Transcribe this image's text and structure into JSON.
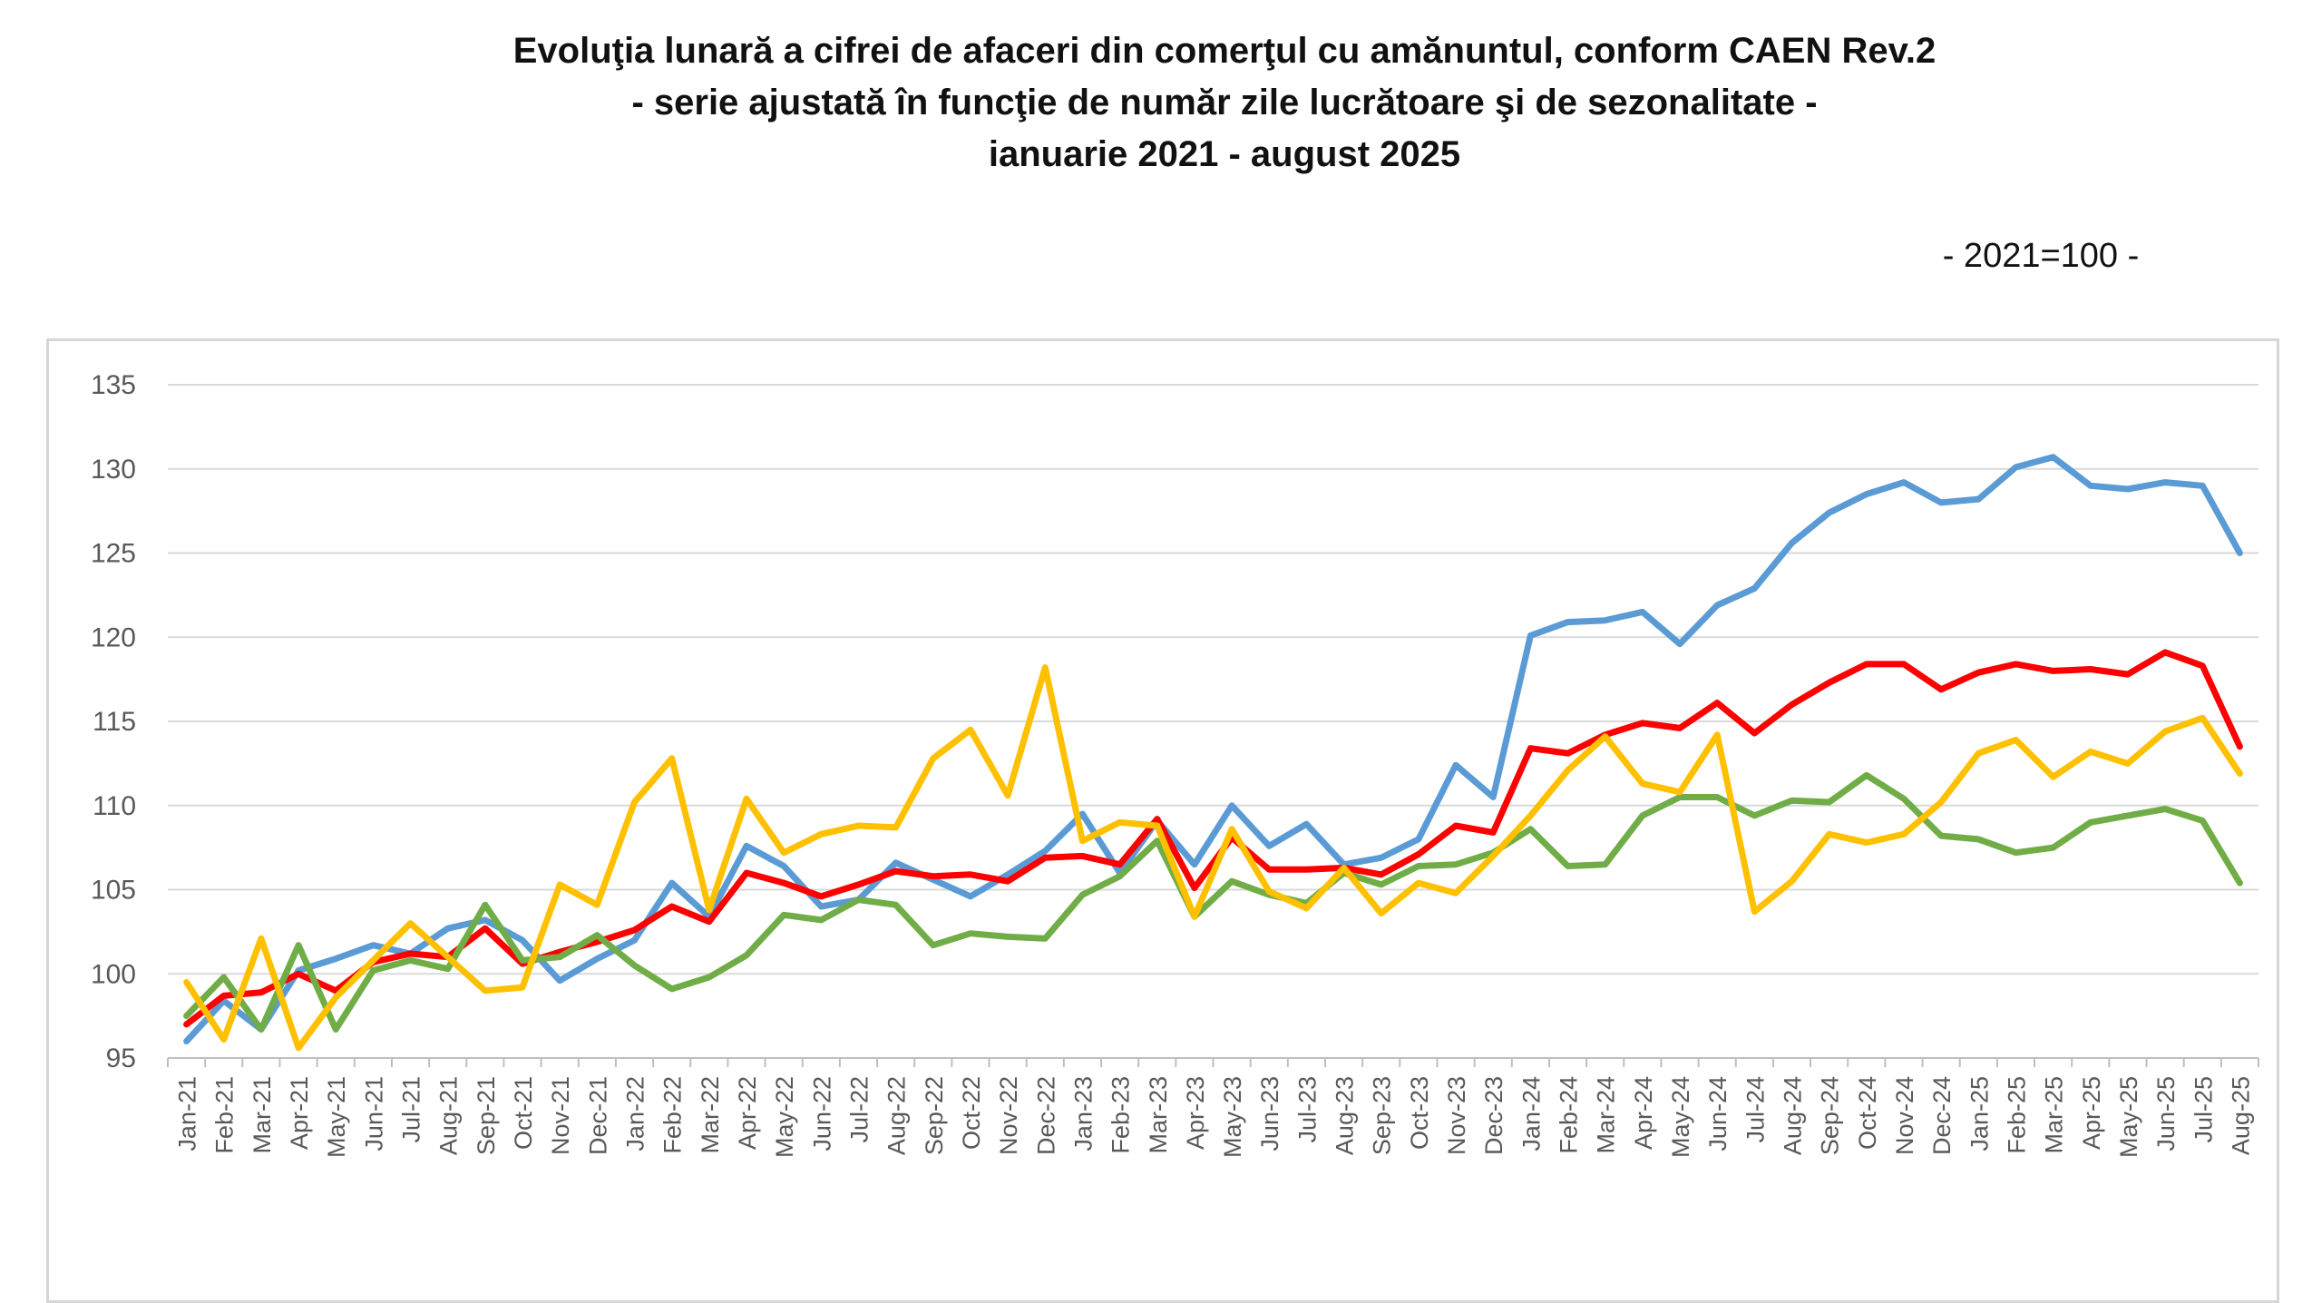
{
  "chart_data": {
    "type": "line",
    "title_lines": [
      "Evoluţia lunară a cifrei de afaceri din comerţul cu amănuntul, conform CAEN Rev.2",
      "- serie ajustată în funcţie de număr zile lucrătoare şi de sezonalitate -",
      "ianuarie 2021 - august 2025"
    ],
    "unit_note": "- 2021=100 -",
    "xlabel": "",
    "ylabel": "",
    "ylim": [
      95,
      135
    ],
    "yticks": [
      95,
      100,
      105,
      110,
      115,
      120,
      125,
      130,
      135
    ],
    "grid": true,
    "legend": "none",
    "categories": [
      "Jan-21",
      "Feb-21",
      "Mar-21",
      "Apr-21",
      "May-21",
      "Jun-21",
      "Jul-21",
      "Aug-21",
      "Sep-21",
      "Oct-21",
      "Nov-21",
      "Dec-21",
      "Jan-22",
      "Feb-22",
      "Mar-22",
      "Apr-22",
      "May-22",
      "Jun-22",
      "Jul-22",
      "Aug-22",
      "Sep-22",
      "Oct-22",
      "Nov-22",
      "Dec-22",
      "Jan-23",
      "Feb-23",
      "Mar-23",
      "Apr-23",
      "May-23",
      "Jun-23",
      "Jul-23",
      "Aug-23",
      "Sep-23",
      "Oct-23",
      "Nov-23",
      "Dec-23",
      "Jan-24",
      "Feb-24",
      "Mar-24",
      "Apr-24",
      "May-24",
      "Jun-24",
      "Jul-24",
      "Aug-24",
      "Sep-24",
      "Oct-24",
      "Nov-24",
      "Dec-24",
      "Jan-25",
      "Feb-25",
      "Mar-25",
      "Apr-25",
      "May-25",
      "Jun-25",
      "Jul-25",
      "Aug-25"
    ],
    "series": [
      {
        "color": "#5B9BD5",
        "values": [
          96.0,
          98.4,
          96.7,
          100.2,
          100.9,
          101.7,
          101.2,
          102.7,
          103.2,
          102.0,
          99.6,
          100.9,
          102.0,
          105.4,
          103.4,
          107.6,
          106.4,
          104.0,
          104.4,
          106.6,
          105.6,
          104.6,
          105.9,
          107.3,
          109.5,
          106.0,
          109.1,
          106.5,
          110.0,
          107.6,
          108.9,
          106.5,
          106.9,
          108.0,
          112.4,
          110.5,
          120.1,
          120.9,
          121.0,
          121.5,
          119.6,
          121.9,
          122.9,
          125.6,
          127.4,
          128.5,
          129.2,
          128.0,
          128.2,
          130.1,
          130.7,
          129.0,
          128.8,
          129.2,
          129.0,
          125.0
        ]
      },
      {
        "color": "#FF0000",
        "values": [
          97.0,
          98.7,
          98.9,
          100.0,
          99.0,
          100.7,
          101.2,
          101.0,
          102.7,
          100.6,
          101.3,
          101.9,
          102.6,
          104.0,
          103.1,
          106.0,
          105.4,
          104.6,
          105.3,
          106.1,
          105.8,
          105.9,
          105.5,
          106.9,
          107.0,
          106.5,
          109.2,
          105.1,
          108.1,
          106.2,
          106.2,
          106.3,
          105.9,
          107.1,
          108.8,
          108.4,
          113.4,
          113.1,
          114.2,
          114.9,
          114.6,
          116.1,
          114.3,
          116.0,
          117.3,
          118.4,
          118.4,
          116.9,
          117.9,
          118.4,
          118.0,
          118.1,
          117.8,
          119.1,
          118.3,
          113.5
        ]
      },
      {
        "color": "#70AD47",
        "values": [
          97.5,
          99.8,
          96.7,
          101.7,
          96.7,
          100.2,
          100.8,
          100.3,
          104.1,
          100.8,
          101.0,
          102.3,
          100.5,
          99.1,
          99.8,
          101.1,
          103.5,
          103.2,
          104.4,
          104.1,
          101.7,
          102.4,
          102.2,
          102.1,
          104.7,
          105.8,
          107.9,
          103.4,
          105.5,
          104.7,
          104.2,
          106.0,
          105.3,
          106.4,
          106.5,
          107.2,
          108.6,
          106.4,
          106.5,
          109.4,
          110.5,
          110.5,
          109.4,
          110.3,
          110.2,
          111.8,
          110.4,
          108.2,
          108.0,
          107.2,
          107.5,
          109.0,
          109.4,
          109.8,
          109.1,
          105.4
        ]
      },
      {
        "color": "#FFC000",
        "values": [
          99.5,
          96.1,
          102.1,
          95.6,
          98.6,
          100.8,
          103.0,
          101.0,
          99.0,
          99.2,
          105.3,
          104.1,
          110.2,
          112.8,
          103.8,
          110.4,
          107.2,
          108.3,
          108.8,
          108.7,
          112.8,
          114.5,
          110.6,
          118.2,
          107.9,
          109.0,
          108.8,
          103.4,
          108.6,
          104.9,
          103.9,
          106.3,
          103.6,
          105.4,
          104.8,
          107.0,
          109.4,
          112.1,
          114.1,
          111.3,
          110.8,
          114.2,
          103.7,
          105.5,
          108.3,
          107.8,
          108.3,
          110.2,
          113.1,
          113.9,
          111.7,
          113.2,
          112.5,
          114.4,
          115.2,
          111.9
        ]
      }
    ]
  }
}
